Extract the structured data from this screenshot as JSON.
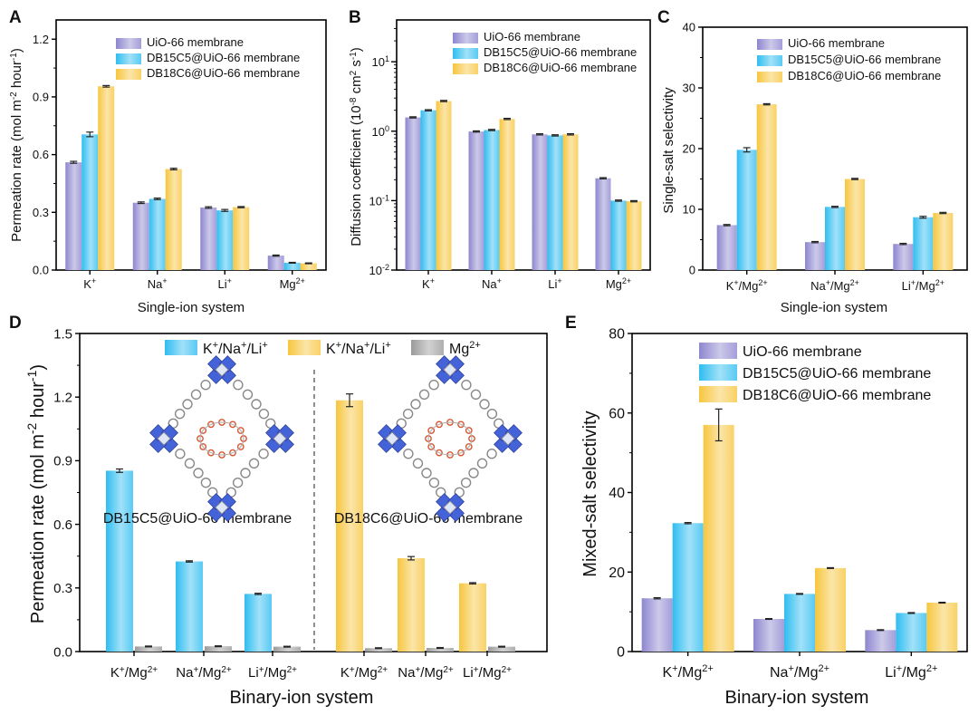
{
  "colors": {
    "uio": "#8d86cf",
    "db15": "#2fbdf0",
    "db18": "#f7c63e",
    "mg": "#9a9a9a",
    "mof_blue": "#4563d8",
    "crown_red": "#d9542f"
  },
  "chart_data": [
    {
      "panel": "A",
      "type": "bar",
      "categories": [
        "K⁺",
        "Na⁺",
        "Li⁺",
        "Mg²⁺"
      ],
      "ylabel": "Permeation rate (mol m⁻² hour⁻¹)",
      "xlabel": "Single-ion system",
      "ylim": [
        0,
        1.3
      ],
      "yticks": [
        "0.0",
        "0.3",
        "0.6",
        "0.9",
        "1.2"
      ],
      "scale": "linear",
      "legend_position": "top-right",
      "series": [
        {
          "name": "UiO-66 membrane",
          "color": "uio",
          "values": [
            0.56,
            0.35,
            0.325,
            0.075
          ],
          "errors": [
            0.005,
            0.004,
            0.004,
            0.003
          ]
        },
        {
          "name": "DB15C5@UiO-66 membrane",
          "color": "db15",
          "values": [
            0.705,
            0.37,
            0.31,
            0.038
          ],
          "errors": [
            0.012,
            0.004,
            0.005,
            0.002
          ]
        },
        {
          "name": "DB18C6@UiO-66 membrane",
          "color": "db18",
          "values": [
            0.955,
            0.525,
            0.327,
            0.035
          ],
          "errors": [
            0.004,
            0.004,
            0.003,
            0.002
          ]
        }
      ]
    },
    {
      "panel": "B",
      "type": "bar",
      "categories": [
        "K⁺",
        "Na⁺",
        "Li⁺",
        "Mg²⁺"
      ],
      "ylabel": "Diffusion coefficient (10⁻⁸ cm² s⁻¹)",
      "xlabel": "",
      "ylim": [
        0.01,
        40
      ],
      "scale": "log",
      "ytick_values": [
        0.01,
        0.1,
        1,
        10
      ],
      "ytick_exponents": [
        "-2",
        "-1",
        "0",
        "1"
      ],
      "legend_position": "top-right",
      "series": [
        {
          "name": "UiO-66 membrane",
          "color": "uio",
          "values": [
            1.58,
            0.99,
            0.9,
            0.21
          ]
        },
        {
          "name": "DB15C5@UiO-66 membrane",
          "color": "db15",
          "values": [
            2.0,
            1.04,
            0.87,
            0.1
          ]
        },
        {
          "name": "DB18C6@UiO-66 membrane",
          "color": "db18",
          "values": [
            2.72,
            1.5,
            0.9,
            0.098
          ]
        }
      ]
    },
    {
      "panel": "C",
      "type": "bar",
      "categories": [
        "K⁺/Mg²⁺",
        "Na⁺/Mg²⁺",
        "Li⁺/Mg²⁺"
      ],
      "ylabel": "Single-salt selectivity",
      "xlabel": "Single-ion system",
      "ylim": [
        0,
        40
      ],
      "yticks": [
        "0",
        "10",
        "20",
        "30",
        "40"
      ],
      "scale": "linear",
      "legend_position": "top-right",
      "series": [
        {
          "name": "UiO-66 membrane",
          "color": "uio",
          "values": [
            7.4,
            4.6,
            4.3
          ],
          "errors": [
            0.1,
            0.1,
            0.1
          ]
        },
        {
          "name": "DB15C5@UiO-66 membrane",
          "color": "db15",
          "values": [
            19.8,
            10.4,
            8.7
          ],
          "errors": [
            0.35,
            0.1,
            0.15
          ]
        },
        {
          "name": "DB18C6@UiO-66 membrane",
          "color": "db18",
          "values": [
            27.3,
            15.0,
            9.4
          ],
          "errors": [
            0.1,
            0.1,
            0.1
          ]
        }
      ]
    },
    {
      "panel": "D",
      "type": "bar",
      "categories": [
        "K⁺/Mg²⁺",
        "Na⁺/Mg²⁺",
        "Li⁺/Mg²⁺",
        "K⁺/Mg²⁺",
        "Na⁺/Mg²⁺",
        "Li⁺/Mg²⁺"
      ],
      "ylabel": "Permeation rate (mol m⁻² hour⁻¹)",
      "xlabel": "Binary-ion system",
      "ylim": [
        0,
        1.5
      ],
      "yticks": [
        "0.0",
        "0.3",
        "0.6",
        "0.9",
        "1.2",
        "1.5"
      ],
      "scale": "linear",
      "legend_position": "top",
      "legend": [
        "K⁺/Na⁺/Li⁺",
        "K⁺/Na⁺/Li⁺",
        "Mg²⁺"
      ],
      "group_labels": [
        "DB15C5@UiO-66 membrane",
        "DB18C6@UiO-66 membrane"
      ],
      "series": [
        {
          "name": "K⁺/Na⁺/Li⁺",
          "color": "db15",
          "values": [
            0.853,
            0.425,
            0.272,
            null,
            null,
            null
          ],
          "errors": [
            0.008,
            0.003,
            0.003,
            null,
            null,
            null
          ]
        },
        {
          "name": "K⁺/Na⁺/Li⁺",
          "color": "db18",
          "values": [
            null,
            null,
            null,
            1.185,
            0.44,
            0.322
          ],
          "errors": [
            null,
            null,
            null,
            0.03,
            0.008,
            0.003
          ]
        },
        {
          "name": "Mg²⁺",
          "color": "mg",
          "values": [
            0.024,
            0.025,
            0.023,
            0.016,
            0.017,
            0.023
          ],
          "errors": [
            0.002,
            0.002,
            0.002,
            0.002,
            0.002,
            0.002
          ]
        }
      ]
    },
    {
      "panel": "E",
      "type": "bar",
      "categories": [
        "K⁺/Mg²⁺",
        "Na⁺/Mg²⁺",
        "Li⁺/Mg²⁺"
      ],
      "ylabel": "Mixed-salt selectivity",
      "xlabel": "Binary-ion system",
      "ylim": [
        0,
        80
      ],
      "yticks": [
        "0",
        "20",
        "40",
        "60",
        "80"
      ],
      "scale": "linear",
      "legend_position": "top-right",
      "series": [
        {
          "name": "UiO-66 membrane",
          "color": "uio",
          "values": [
            13.4,
            8.2,
            5.4
          ],
          "errors": [
            0.15,
            0.1,
            0.1
          ]
        },
        {
          "name": "DB15C5@UiO-66 membrane",
          "color": "db15",
          "values": [
            32.3,
            14.5,
            9.7
          ],
          "errors": [
            0.15,
            0.1,
            0.1
          ]
        },
        {
          "name": "DB18C6@UiO-66 membrane",
          "color": "db18",
          "values": [
            57,
            21,
            12.3
          ],
          "errors": [
            4,
            0.1,
            0.1
          ]
        }
      ]
    }
  ]
}
